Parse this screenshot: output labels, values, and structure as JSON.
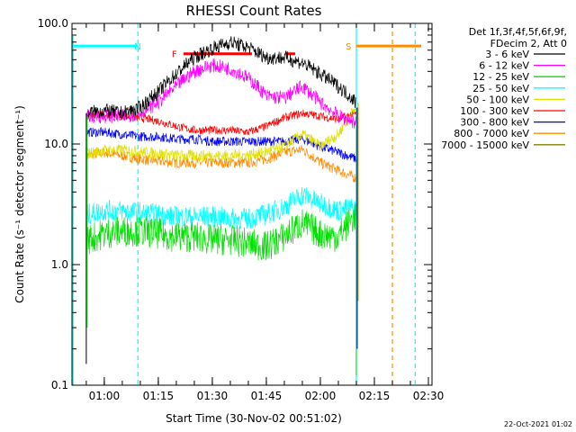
{
  "chart_data": {
    "type": "line",
    "title": "RHESSI Count Rates",
    "xlabel": "Start Time (30-Nov-02 00:51:02)",
    "ylabel": "Count Rate (s⁻¹ detector segment⁻¹)",
    "y_scale": "log",
    "ylim": [
      0.1,
      100.0
    ],
    "xlim": [
      "00:51:02",
      "02:31:00"
    ],
    "y_ticks": [
      "0.1",
      "1.0",
      "10.0",
      "100.0"
    ],
    "x_ticks": [
      "01:00",
      "01:15",
      "01:30",
      "01:45",
      "02:00",
      "02:15",
      "02:30"
    ],
    "legend_header": [
      "Det 1f,3f,4f,5f,6f,9f,",
      "FDecim 2, Att 0"
    ],
    "legend_position": "right",
    "grid": false,
    "series": [
      {
        "name": "3 - 6 keV",
        "color": "#000000",
        "x": [
          "00:55",
          "01:00",
          "01:05",
          "01:10",
          "01:15",
          "01:20",
          "01:25",
          "01:30",
          "01:35",
          "01:40",
          "01:45",
          "01:50",
          "01:55",
          "02:00",
          "02:05",
          "02:10"
        ],
        "y": [
          18,
          19,
          18,
          20,
          27,
          38,
          52,
          62,
          70,
          63,
          52,
          52,
          47,
          38,
          30,
          22
        ]
      },
      {
        "name": "6 - 12 keV",
        "color": "#ff00ff",
        "x": [
          "00:55",
          "01:00",
          "01:05",
          "01:10",
          "01:15",
          "01:20",
          "01:25",
          "01:30",
          "01:35",
          "01:40",
          "01:45",
          "01:50",
          "01:55",
          "02:00",
          "02:05",
          "02:10"
        ],
        "y": [
          17,
          17,
          17,
          18,
          22,
          30,
          40,
          45,
          42,
          35,
          25,
          24,
          30,
          22,
          17,
          15
        ]
      },
      {
        "name": "12 - 25 keV",
        "color": "#00e000",
        "x": [
          "00:55",
          "01:00",
          "01:05",
          "01:10",
          "01:15",
          "01:20",
          "01:25",
          "01:30",
          "01:35",
          "01:40",
          "01:45",
          "01:50",
          "01:55",
          "02:00",
          "02:05",
          "02:10"
        ],
        "y": [
          1.6,
          1.8,
          1.9,
          1.9,
          1.8,
          1.7,
          1.7,
          1.6,
          1.6,
          1.5,
          1.4,
          1.7,
          2.2,
          1.8,
          1.7,
          2.6
        ]
      },
      {
        "name": "25 - 50 keV",
        "color": "#00ffff",
        "x": [
          "00:55",
          "01:00",
          "01:05",
          "01:10",
          "01:15",
          "01:20",
          "01:25",
          "01:30",
          "01:35",
          "01:40",
          "01:45",
          "01:50",
          "01:55",
          "02:00",
          "02:05",
          "02:10"
        ],
        "y": [
          2.6,
          2.8,
          2.8,
          2.7,
          2.6,
          2.5,
          2.5,
          2.5,
          2.4,
          2.4,
          2.6,
          3.0,
          3.8,
          3.2,
          2.8,
          3.0
        ]
      },
      {
        "name": "50 - 100 keV",
        "color": "#e0e000",
        "x": [
          "00:55",
          "01:00",
          "01:05",
          "01:10",
          "01:15",
          "01:20",
          "01:25",
          "01:30",
          "01:35",
          "01:40",
          "01:45",
          "01:50",
          "01:55",
          "02:00",
          "02:05",
          "02:10"
        ],
        "y": [
          8.3,
          8.8,
          8.9,
          8.6,
          8.3,
          8.0,
          8.0,
          8.0,
          8.0,
          8.1,
          8.6,
          9.5,
          12,
          9.5,
          12,
          20
        ]
      },
      {
        "name": "100 - 300 keV",
        "color": "#ff0000",
        "x": [
          "00:55",
          "01:00",
          "01:05",
          "01:10",
          "01:15",
          "01:20",
          "01:25",
          "01:30",
          "01:35",
          "01:40",
          "01:45",
          "01:50",
          "01:55",
          "02:00",
          "02:05",
          "02:10"
        ],
        "y": [
          17,
          17.5,
          17,
          16.5,
          15.5,
          14,
          13,
          13,
          13,
          12.5,
          14,
          16.5,
          18,
          17,
          16,
          18
        ]
      },
      {
        "name": "300 - 800 keV",
        "color": "#0000ff",
        "x": [
          "00:55",
          "01:00",
          "01:05",
          "01:10",
          "01:15",
          "01:20",
          "01:25",
          "01:30",
          "01:35",
          "01:40",
          "01:45",
          "01:50",
          "01:55",
          "02:00",
          "02:05",
          "02:10"
        ],
        "y": [
          12.5,
          12.5,
          12,
          11.5,
          11.5,
          11,
          11,
          10.5,
          10.5,
          10.5,
          10.5,
          10.5,
          11,
          9.5,
          8.5,
          7.5
        ]
      },
      {
        "name": "800 - 7000 keV",
        "color": "#ff8c00",
        "x": [
          "00:55",
          "01:00",
          "01:05",
          "01:10",
          "01:15",
          "01:20",
          "01:25",
          "01:30",
          "01:35",
          "01:40",
          "01:45",
          "01:50",
          "01:55",
          "02:00",
          "02:05",
          "02:10"
        ],
        "y": [
          8.0,
          8.5,
          8.0,
          7.5,
          7.2,
          7.0,
          7.0,
          7.0,
          7.0,
          7.0,
          7.5,
          8.5,
          9.0,
          7.0,
          6.0,
          5.2
        ]
      },
      {
        "name": "7000 - 15000 keV",
        "color": "#808000",
        "x": [],
        "y": []
      }
    ],
    "annotations": [
      {
        "label": "N",
        "color": "#00ffff",
        "times": [
          "00:51:02",
          "01:09:20"
        ],
        "value": 65
      },
      {
        "label": "S",
        "color": "#ff8c00",
        "times": [
          "02:10:00",
          "02:28:00"
        ],
        "value": 65
      },
      {
        "label": "F",
        "color": "#ff0000",
        "times": [
          "01:22:00",
          "01:41:00"
        ],
        "value": 56
      },
      {
        "label": "",
        "color": "#ff0000",
        "times": [
          "01:50:30",
          "01:53:00"
        ],
        "value": 56
      }
    ],
    "vertical_lines": [
      {
        "time": "01:09:20",
        "color": "#00ffff",
        "style": "dashed"
      },
      {
        "time": "02:10:00",
        "color": "#00ffff",
        "style": "solid"
      },
      {
        "time": "02:20:00",
        "color": "#ff8c00",
        "style": "dashed"
      },
      {
        "time": "02:26:20",
        "color": "#00ffff",
        "style": "dashed"
      }
    ],
    "footer": "22-Oct-2021 01:02"
  }
}
